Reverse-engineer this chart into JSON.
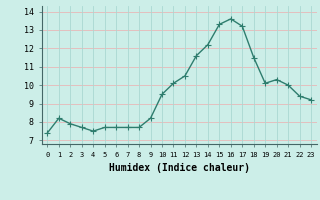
{
  "x": [
    0,
    1,
    2,
    3,
    4,
    5,
    6,
    7,
    8,
    9,
    10,
    11,
    12,
    13,
    14,
    15,
    16,
    17,
    18,
    19,
    20,
    21,
    22,
    23
  ],
  "y": [
    7.4,
    8.2,
    7.9,
    7.7,
    7.5,
    7.7,
    7.7,
    7.7,
    7.7,
    8.2,
    9.5,
    10.1,
    10.5,
    11.6,
    12.2,
    13.3,
    13.6,
    13.2,
    11.5,
    10.1,
    10.3,
    10.0,
    9.4,
    9.2
  ],
  "line_color": "#2e7d6e",
  "marker": "D",
  "marker_size": 2.2,
  "line_width": 1.0,
  "bg_color": "#cceee8",
  "grid_color_vert": "#aad8d2",
  "grid_color_horiz": "#e8b8b8",
  "xlabel": "Humidex (Indice chaleur)",
  "xlabel_fontsize": 7,
  "ylabel_ticks": [
    7,
    8,
    9,
    10,
    11,
    12,
    13,
    14
  ],
  "xlim": [
    -0.5,
    23.5
  ],
  "ylim": [
    6.8,
    14.3
  ]
}
